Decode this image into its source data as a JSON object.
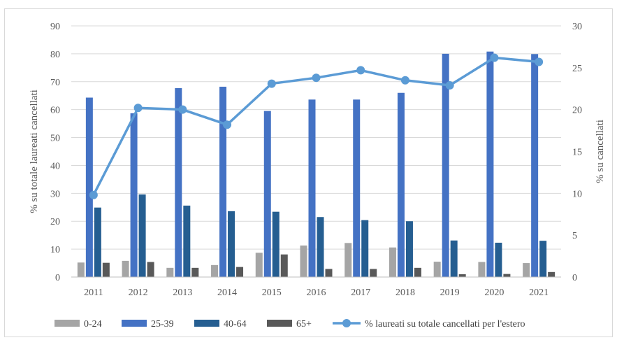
{
  "chart_data": {
    "type": "bar",
    "categories": [
      "2011",
      "2012",
      "2013",
      "2014",
      "2015",
      "2016",
      "2017",
      "2018",
      "2019",
      "2020",
      "2021"
    ],
    "series": [
      {
        "name": "0-24",
        "axis": "left",
        "color": "#a5a5a5",
        "values": [
          5.2,
          5.8,
          3.3,
          4.3,
          8.7,
          11.3,
          12.2,
          10.6,
          5.5,
          5.4,
          5.0
        ]
      },
      {
        "name": "25-39",
        "axis": "left",
        "color": "#4472c4",
        "values": [
          64.3,
          58.7,
          67.7,
          68.2,
          59.5,
          63.6,
          63.6,
          66.0,
          80.0,
          80.8,
          79.9
        ]
      },
      {
        "name": "40-64",
        "axis": "left",
        "color": "#255e91",
        "values": [
          24.9,
          29.6,
          25.6,
          23.6,
          23.4,
          21.5,
          20.4,
          20.0,
          13.1,
          12.3,
          13.0
        ]
      },
      {
        "name": "65+",
        "axis": "left",
        "color": "#595959",
        "values": [
          5.1,
          5.4,
          3.3,
          3.6,
          8.1,
          2.9,
          2.9,
          3.3,
          1.0,
          1.1,
          1.8
        ]
      }
    ],
    "line_series": {
      "name": "% laureati su totale cancellati per l'estero",
      "axis": "right",
      "color": "#5b9bd5",
      "values": [
        9.8,
        20.2,
        20.0,
        18.2,
        23.1,
        23.8,
        24.7,
        23.5,
        22.9,
        26.2,
        25.7
      ]
    },
    "y_left": {
      "label": "% su totale laureati cancellati",
      "lim": [
        0,
        90
      ],
      "ticks": [
        "0",
        "10",
        "20",
        "30",
        "40",
        "50",
        "60",
        "70",
        "80",
        "90"
      ]
    },
    "y_right": {
      "label": "% su cancellati",
      "lim": [
        0,
        30
      ],
      "ticks": [
        "0",
        "5",
        "10",
        "15",
        "20",
        "25",
        "30"
      ]
    },
    "grid": true,
    "legend_position": "bottom"
  }
}
